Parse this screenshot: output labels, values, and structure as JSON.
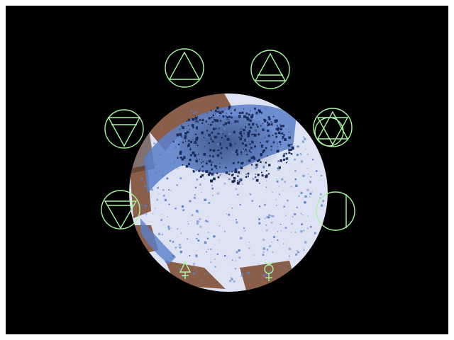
{
  "scene": {
    "background": "#000000",
    "map_colors": {
      "ice": "#dde3f3",
      "water": "#5b7fc9",
      "deep": "#1b2c5a",
      "land": "#8b5e4a",
      "marker": "#a8f5a0"
    },
    "symbols": [
      "alchemical-fire-triangle",
      "alchemical-fire-triangle-circled",
      "alchemical-water-triangle",
      "alchemical-hexagram-circled",
      "alchemical-water-triangle-circled",
      "empty-circle-with-vertical-line",
      "alchemical-air-triangle",
      "alchemical-sulfur-glyph"
    ]
  }
}
